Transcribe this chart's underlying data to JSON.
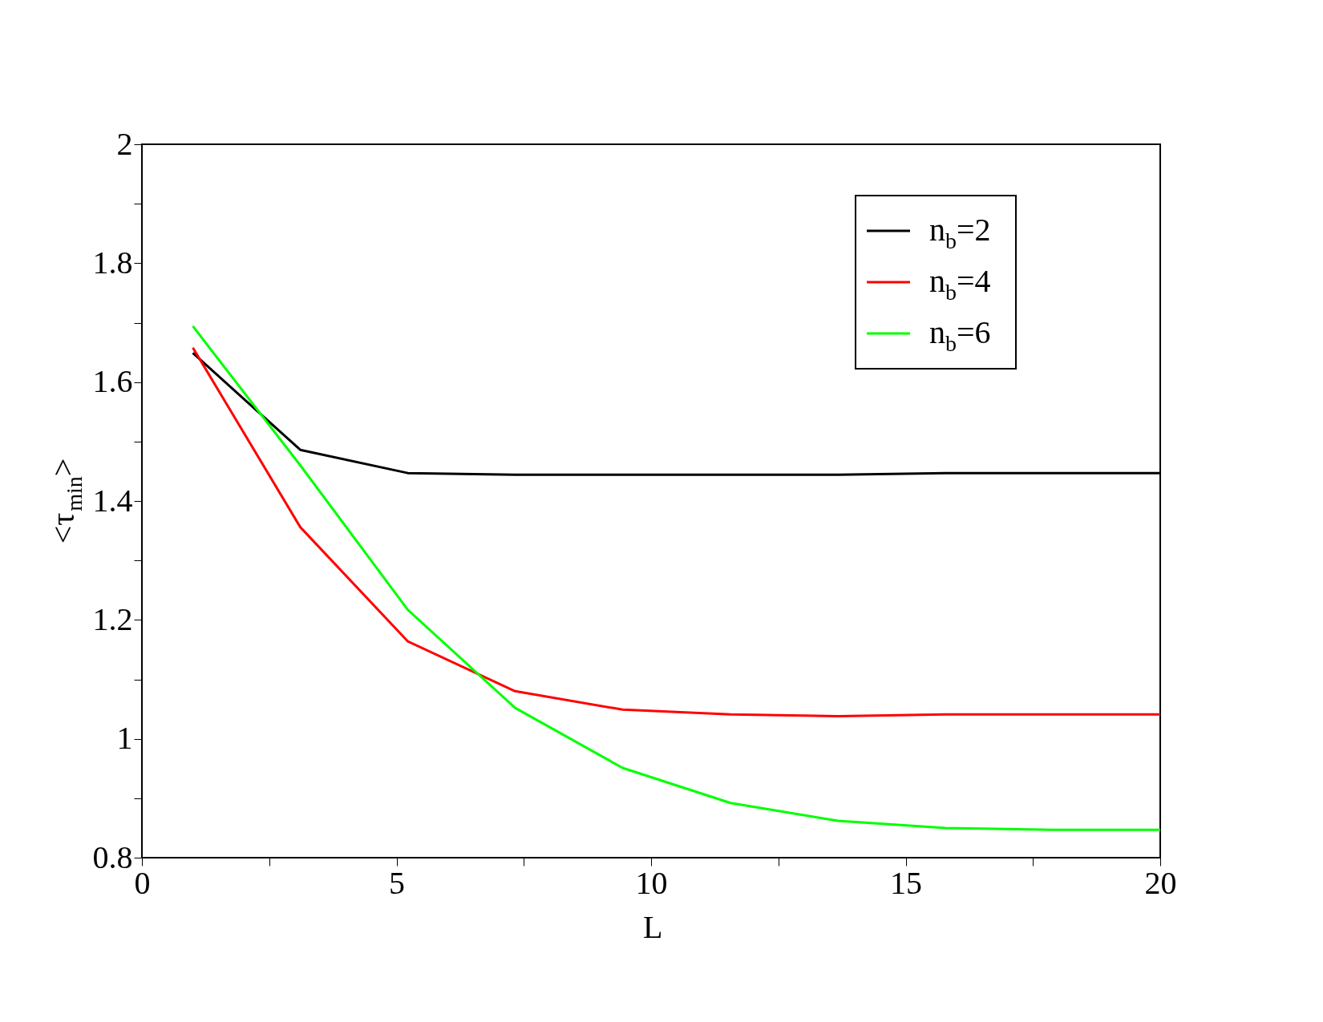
{
  "chart_data": {
    "type": "line",
    "xlabel": "L",
    "ylabel": "<τ$_{min}$>",
    "x": [
      1,
      3.11,
      5.22,
      7.33,
      9.44,
      11.56,
      13.67,
      15.78,
      17.89,
      20
    ],
    "series": [
      {
        "name": "n$_{b}$=2",
        "color": "#000000",
        "values": [
          1.649,
          1.486,
          1.447,
          1.444,
          1.444,
          1.444,
          1.444,
          1.447,
          1.447,
          1.447
        ]
      },
      {
        "name": "n$_{b}$=4",
        "color": "#ff0000",
        "values": [
          1.658,
          1.356,
          1.164,
          1.08,
          1.049,
          1.041,
          1.038,
          1.041,
          1.041,
          1.041
        ]
      },
      {
        "name": "n$_{b}$=6",
        "color": "#00ff00",
        "values": [
          1.694,
          1.46,
          1.217,
          1.052,
          0.951,
          0.892,
          0.862,
          0.85,
          0.847,
          0.847
        ]
      }
    ],
    "xlim": [
      0,
      20
    ],
    "ylim": [
      0.8,
      2
    ],
    "xticks": [
      0,
      {
        "value": 2.5,
        "label": null
      },
      5,
      {
        "value": 7.5,
        "label": null
      },
      10,
      {
        "value": 12.5,
        "label": null
      },
      15,
      {
        "value": 17.5,
        "label": null
      },
      20
    ],
    "yticks": [
      0.8,
      {
        "value": 0.9,
        "label": null
      },
      1,
      {
        "value": 1.1,
        "label": null
      },
      1.2,
      {
        "value": 1.3,
        "label": null
      },
      1.4,
      {
        "value": 1.5,
        "label": null
      },
      1.6,
      {
        "value": 1.7,
        "label": null
      },
      1.8,
      {
        "value": 1.9,
        "label": null
      },
      2
    ],
    "grid": false,
    "legend": "top right",
    "marker": "none",
    "line_style": "solid"
  }
}
